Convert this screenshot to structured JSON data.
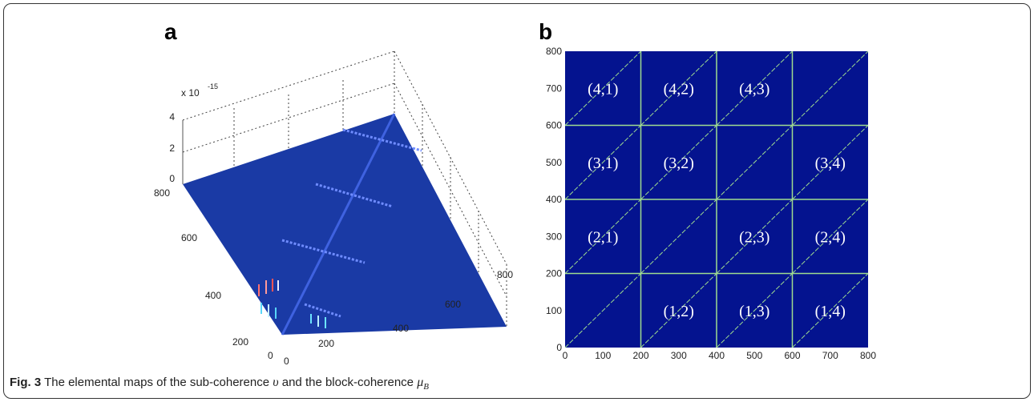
{
  "figure": {
    "panel_a_letter": "a",
    "panel_b_letter": "b",
    "caption": {
      "label": "Fig. 3",
      "text_1": " The elemental maps of the sub-coherence ",
      "symbol_1": "υ",
      "text_2": " and the block-coherence ",
      "symbol_2": "μ",
      "symbol_2_sub": "B"
    }
  },
  "chart_data": [
    {
      "type": "surface3d",
      "panel": "a",
      "z_multiplier_label": "x 10",
      "z_exponent": "-15",
      "z_ticks": [
        "0",
        "2",
        "4"
      ],
      "y_ticks": [
        "200",
        "400",
        "600",
        "800"
      ],
      "x_ticks": [
        "200",
        "400",
        "600",
        "800"
      ],
      "origin_labels": [
        "0",
        "0"
      ],
      "xlim": [
        0,
        800
      ],
      "ylim": [
        0,
        800
      ],
      "zlim": [
        0,
        4
      ],
      "surface_color": "#1a3aa5",
      "grid": true
    },
    {
      "type": "heatmap",
      "panel": "b",
      "x_ticks": [
        "0",
        "100",
        "200",
        "300",
        "400",
        "500",
        "600",
        "700",
        "800"
      ],
      "y_ticks": [
        "0",
        "100",
        "200",
        "300",
        "400",
        "500",
        "600",
        "700",
        "800"
      ],
      "xlim": [
        0,
        800
      ],
      "ylim": [
        0,
        800
      ],
      "background_color": "#04138f",
      "grid_color": "#9fdc8f",
      "block_size": 200,
      "blocks_with_label": [
        {
          "row": 4,
          "col": 1,
          "label": "(4,1)"
        },
        {
          "row": 4,
          "col": 2,
          "label": "(4,2)"
        },
        {
          "row": 4,
          "col": 3,
          "label": "(4,3)"
        },
        {
          "row": 3,
          "col": 1,
          "label": "(3,1)"
        },
        {
          "row": 3,
          "col": 2,
          "label": "(3,2)"
        },
        {
          "row": 3,
          "col": 4,
          "label": "(3,4)"
        },
        {
          "row": 2,
          "col": 1,
          "label": "(2,1)"
        },
        {
          "row": 2,
          "col": 3,
          "label": "(2,3)"
        },
        {
          "row": 2,
          "col": 4,
          "label": "(2,4)"
        },
        {
          "row": 1,
          "col": 2,
          "label": "(1,2)"
        },
        {
          "row": 1,
          "col": 3,
          "label": "(1,3)"
        },
        {
          "row": 1,
          "col": 4,
          "label": "(1,4)"
        }
      ]
    }
  ]
}
